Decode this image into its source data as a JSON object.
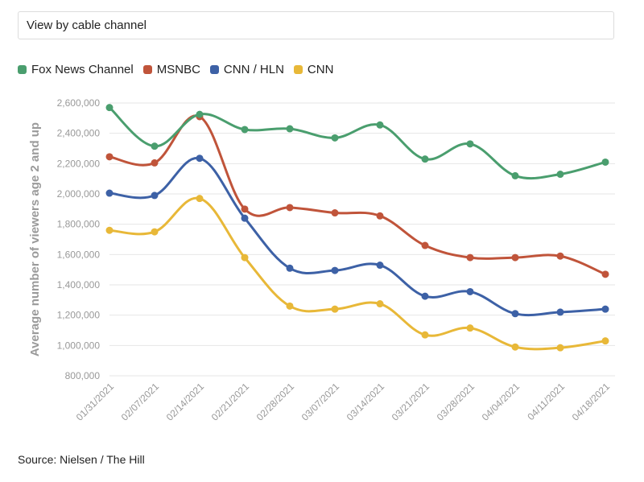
{
  "filter": {
    "label": "View by cable channel"
  },
  "source": "Source: Nielsen / The Hill",
  "chart_data": {
    "type": "line",
    "title": "",
    "xlabel": "",
    "ylabel": "Average number of viewers age 2 and up",
    "ylim": [
      800000,
      2600000
    ],
    "yticks": [
      "800,000",
      "1,000,000",
      "1,200,000",
      "1,400,000",
      "1,600,000",
      "1,800,000",
      "2,000,000",
      "2,200,000",
      "2,400,000",
      "2,600,000"
    ],
    "grid": true,
    "legend_position": "top-left",
    "categories": [
      "01/31/2021",
      "02/07/2021",
      "02/14/2021",
      "02/21/2021",
      "02/28/2021",
      "03/07/2021",
      "03/14/2021",
      "03/21/2021",
      "03/28/2021",
      "04/04/2021",
      "04/11/2021",
      "04/18/2021"
    ],
    "series": [
      {
        "name": "Fox News Channel",
        "color": "#4a9e6e",
        "values": [
          2570000,
          2315000,
          2525000,
          2425000,
          2430000,
          2370000,
          2455000,
          2230000,
          2330000,
          2120000,
          2130000,
          2210000
        ]
      },
      {
        "name": "MSNBC",
        "color": "#c0543a",
        "values": [
          2245000,
          2205000,
          2510000,
          1900000,
          1910000,
          1875000,
          1855000,
          1660000,
          1580000,
          1580000,
          1590000,
          1470000
        ]
      },
      {
        "name": "CNN / HLN",
        "color": "#3d61a6",
        "values": [
          2005000,
          1990000,
          2235000,
          1840000,
          1510000,
          1495000,
          1530000,
          1325000,
          1355000,
          1210000,
          1220000,
          1240000
        ]
      },
      {
        "name": "CNN",
        "color": "#e8b838",
        "values": [
          1760000,
          1750000,
          1970000,
          1580000,
          1260000,
          1240000,
          1275000,
          1070000,
          1115000,
          990000,
          985000,
          1030000
        ]
      }
    ]
  }
}
